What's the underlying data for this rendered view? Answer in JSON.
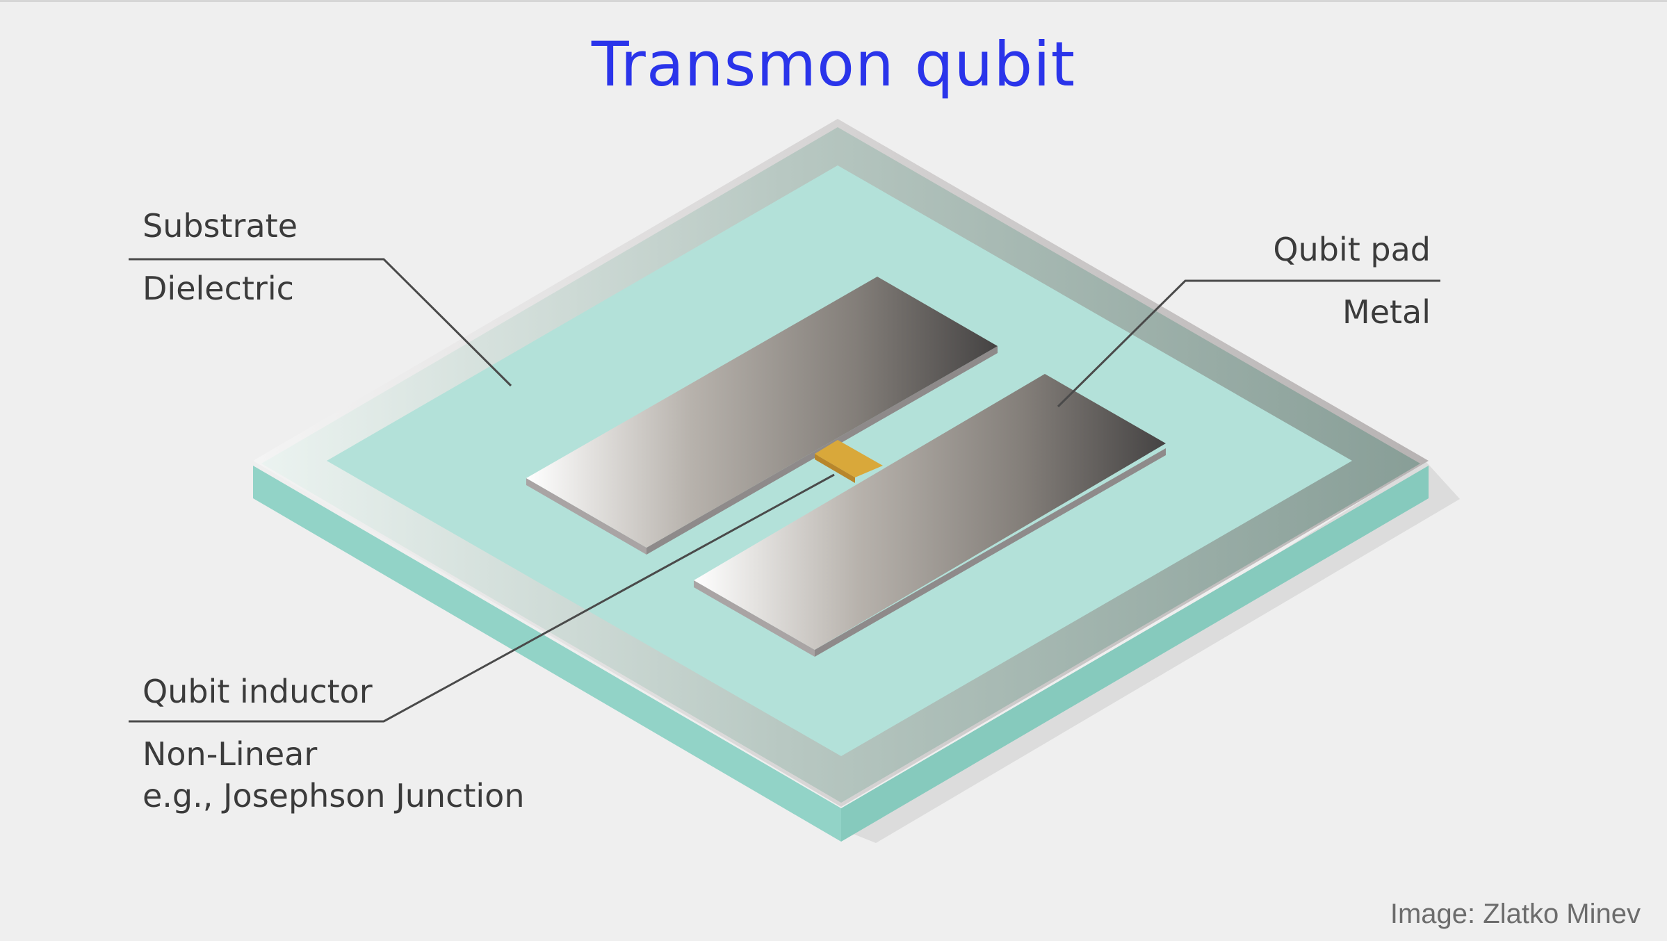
{
  "title": "Transmon qubit",
  "labels": {
    "substrate": {
      "name": "Substrate",
      "detail": "Dielectric"
    },
    "qubit_pad": {
      "name": "Qubit pad",
      "detail": "Metal"
    },
    "qubit_inductor": {
      "name": "Qubit inductor",
      "detail_line1": "Non-Linear",
      "detail_line2": "e.g., Josephson Junction"
    }
  },
  "credit": "Image: Zlatko Minev",
  "colors": {
    "title": "#2a34ea",
    "substrate_top": "#b3e1d9",
    "substrate_side": "#92d3c7",
    "frame": "#97aea6",
    "junction": "#d9a83a",
    "leader_line": "#4a4a4a"
  }
}
